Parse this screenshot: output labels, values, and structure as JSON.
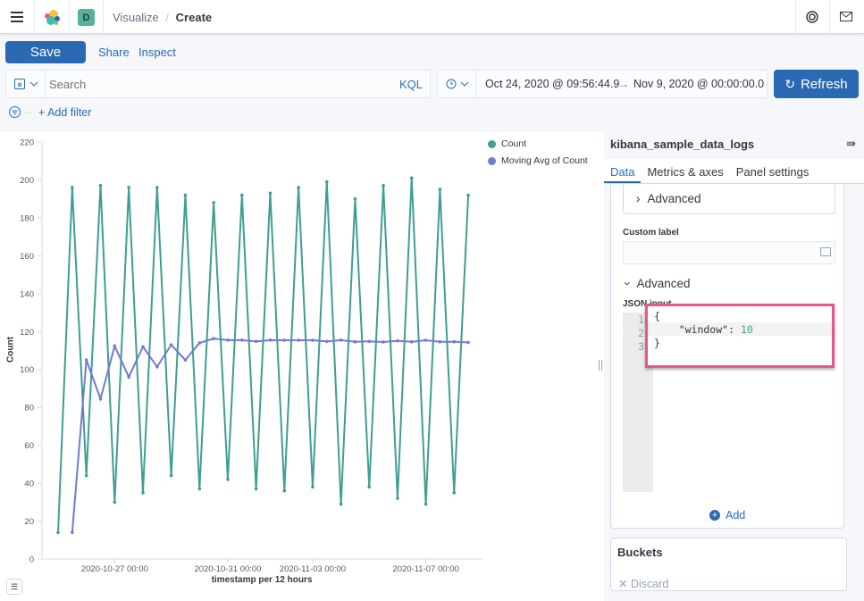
{
  "header": {
    "breadcrumb_parent": "Visualize",
    "breadcrumb_sep": "/",
    "breadcrumb_current": "Create",
    "space_avatar": "D",
    "icons": [
      "menu-icon",
      "kibana-logo",
      "help-icon",
      "mail-icon"
    ]
  },
  "toolbar": {
    "save": "Save",
    "share": "Share",
    "inspect": "Inspect"
  },
  "query": {
    "placeholder": "Search",
    "language": "KQL",
    "add_filter": "+ Add filter"
  },
  "time": {
    "start": "Oct 24, 2020 @ 09:56:44.9",
    "arrow": "→",
    "end": "Nov 9, 2020 @ 00:00:00.0",
    "refresh": "Refresh"
  },
  "panel": {
    "title": "kibana_sample_data_logs",
    "tabs": [
      {
        "label": "Data",
        "active": true
      },
      {
        "label": "Metrics & axes"
      },
      {
        "label": "Panel settings"
      }
    ],
    "advanced_collapsed": "Advanced",
    "custom_label": "Custom label",
    "custom_label_value": "",
    "advanced_open": "Advanced",
    "json_input_label": "JSON input",
    "code_lines": [
      "{",
      "    \"window\": ",
      "}"
    ],
    "code_value": "10",
    "line_numbers": [
      "1",
      "2",
      "3"
    ],
    "add": "Add",
    "buckets": "Buckets",
    "discard": "Discard"
  },
  "colors": {
    "count": "#3f9e91",
    "moving_avg": "#6f7bd4",
    "accent": "#2b6ab3",
    "highlight": "#e8578a"
  },
  "chart_data": {
    "type": "line",
    "xlabel": "timestamp per 12 hours",
    "ylabel": "Count",
    "ylim": [
      0,
      220
    ],
    "yticks": [
      0,
      20,
      40,
      60,
      80,
      100,
      120,
      140,
      160,
      180,
      200,
      220
    ],
    "xticks": [
      {
        "x": "2020-10-27 00:00",
        "label": "2020-10-27 00:00"
      },
      {
        "x": "2020-10-31 00:00",
        "label": "2020-10-31 00:00"
      },
      {
        "x": "2020-11-03 00:00",
        "label": "2020-11-03 00:00"
      },
      {
        "x": "2020-11-07 00:00",
        "label": "2020-11-07 00:00"
      }
    ],
    "x": [
      "2020-10-25 00:00",
      "2020-10-25 12:00",
      "2020-10-26 00:00",
      "2020-10-26 12:00",
      "2020-10-27 00:00",
      "2020-10-27 12:00",
      "2020-10-28 00:00",
      "2020-10-28 12:00",
      "2020-10-29 00:00",
      "2020-10-29 12:00",
      "2020-10-30 00:00",
      "2020-10-30 12:00",
      "2020-10-31 00:00",
      "2020-10-31 12:00",
      "2020-11-01 00:00",
      "2020-11-01 12:00",
      "2020-11-02 00:00",
      "2020-11-02 12:00",
      "2020-11-03 00:00",
      "2020-11-03 12:00",
      "2020-11-04 00:00",
      "2020-11-04 12:00",
      "2020-11-05 00:00",
      "2020-11-05 12:00",
      "2020-11-06 00:00",
      "2020-11-06 12:00",
      "2020-11-07 00:00",
      "2020-11-07 12:00",
      "2020-11-08 00:00",
      "2020-11-08 12:00"
    ],
    "legend_position": "top-right",
    "series": [
      {
        "name": "Count",
        "values": [
          14,
          196,
          44,
          197,
          30,
          196,
          35,
          196,
          44,
          192,
          37,
          188,
          42,
          192,
          37,
          193,
          36,
          196,
          38,
          199,
          29,
          190,
          38,
          197,
          32,
          201,
          29,
          195,
          35,
          192
        ]
      },
      {
        "name": "Moving Avg of Count",
        "values": [
          null,
          14,
          105,
          84.5,
          112.4,
          96,
          112,
          101.4,
          113,
          105,
          114,
          116.3,
          115.5,
          115.5,
          114.8,
          115.5,
          115.4,
          115.4,
          115.4,
          114.8,
          115.5,
          114.6,
          114.8,
          114.5,
          115.1,
          114.6,
          115.4,
          114.6,
          114.6,
          114.3
        ]
      }
    ]
  }
}
